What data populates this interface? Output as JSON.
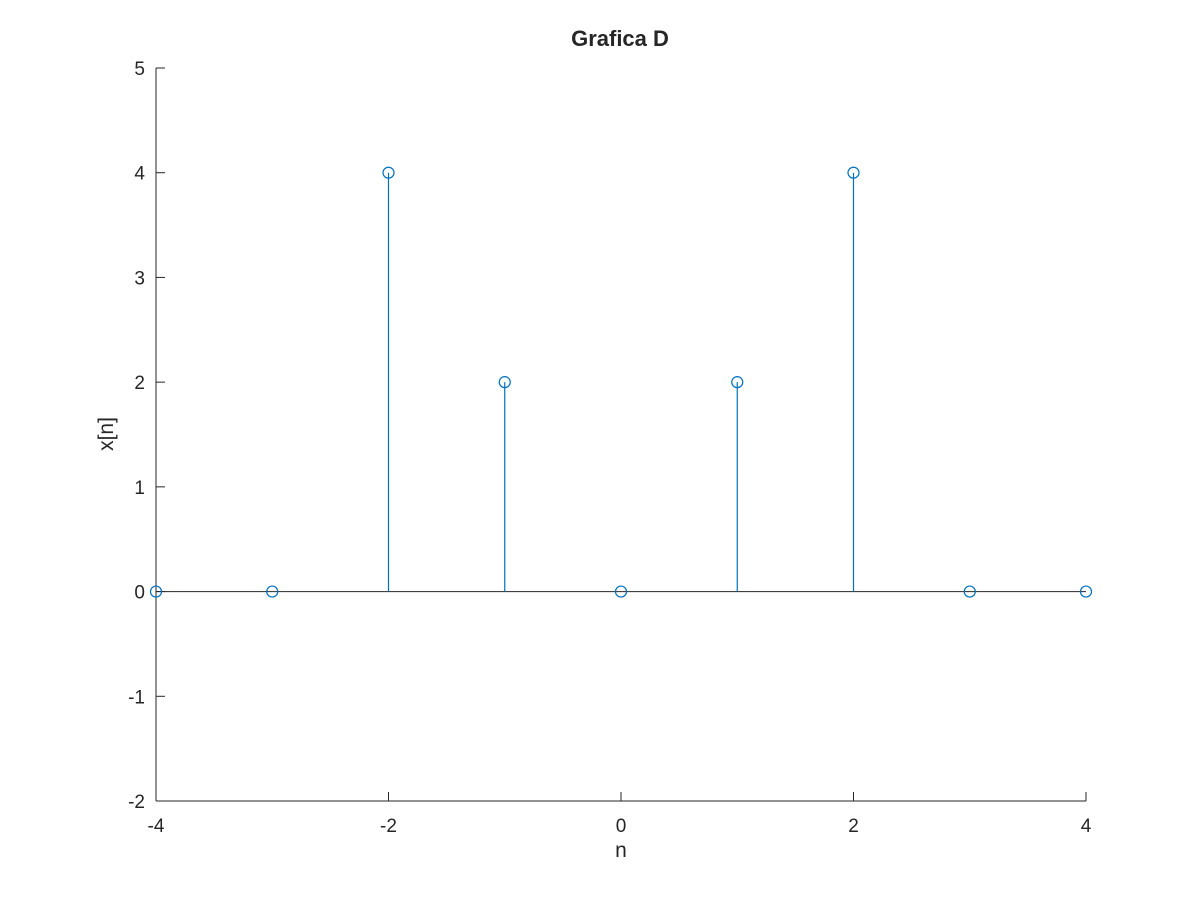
{
  "chart_data": {
    "type": "stem",
    "title": "Grafica D",
    "xlabel": "n",
    "ylabel": "x[n]",
    "xlim": [
      -4,
      4
    ],
    "ylim": [
      -2,
      5
    ],
    "xticks": [
      -4,
      -2,
      0,
      2,
      4
    ],
    "yticks": [
      -2,
      -1,
      0,
      1,
      2,
      3,
      4,
      5
    ],
    "xtick_labels": [
      "-4",
      "-2",
      "0",
      "2",
      "4"
    ],
    "ytick_labels": [
      "-2",
      "-1",
      "0",
      "1",
      "2",
      "3",
      "4",
      "5"
    ],
    "grid": false,
    "series": [
      {
        "x": [
          -4,
          -3,
          -2,
          -1,
          0,
          1,
          2,
          3,
          4
        ],
        "y": [
          0,
          0,
          4,
          2,
          0,
          2,
          4,
          0,
          0
        ],
        "color": "#0072BD",
        "marker": "circle-open"
      }
    ],
    "baseline_color": "#262626"
  }
}
